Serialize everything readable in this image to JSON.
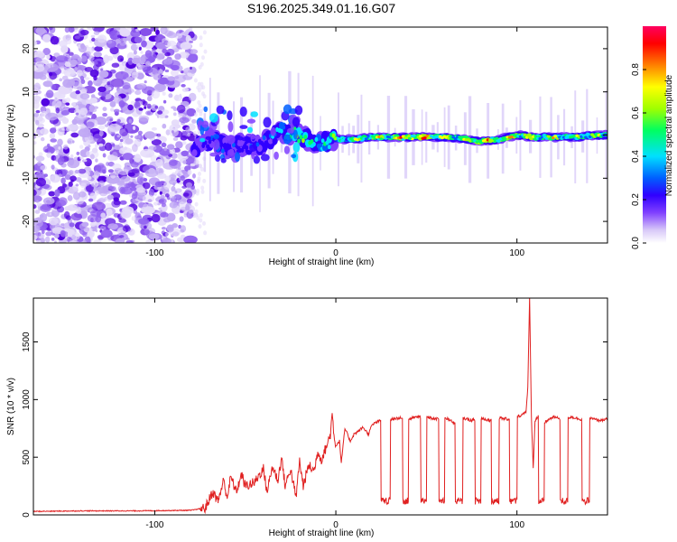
{
  "title": "S196.2025.349.01.16.G07",
  "chart_data": [
    {
      "type": "heatmap",
      "name": "spectrogram",
      "xlabel": "Height of straight line (km)",
      "ylabel": "Frequency (Hz)",
      "xlim": [
        -167,
        150
      ],
      "ylim": [
        -25,
        25
      ],
      "xticks": [
        -100,
        0,
        100
      ],
      "yticks": [
        20,
        10,
        0,
        -10,
        -20
      ],
      "colorbar": {
        "label": "Normalized spectral amplitude",
        "range": [
          0,
          1
        ],
        "ticks": [
          0.0,
          0.2,
          0.4,
          0.6,
          0.8
        ],
        "colors": [
          "#ffffff",
          "#d8c8f8",
          "#8040ff",
          "#3000ff",
          "#0060ff",
          "#00e0ff",
          "#00ff60",
          "#a0ff00",
          "#ffff00",
          "#ff8000",
          "#ff0000",
          "#ff0060"
        ]
      },
      "signal_track": {
        "description_x": [
          -78,
          -70,
          -60,
          -50,
          -40,
          -30,
          -20,
          -10,
          0,
          10,
          20,
          30,
          40,
          50,
          60,
          70,
          80,
          90,
          100,
          110,
          120,
          130,
          140,
          150
        ],
        "frequency": [
          -3,
          -1,
          -3,
          -2,
          -2,
          1,
          0,
          -2,
          -1,
          -1,
          -0.5,
          -0.5,
          -0.5,
          -0.5,
          -0.5,
          -0.8,
          -1.5,
          -1,
          0,
          -0.5,
          -0.5,
          -0.5,
          -0.2,
          0
        ],
        "amplitude": [
          0.25,
          0.3,
          0.3,
          0.3,
          0.3,
          0.45,
          0.6,
          0.45,
          0.6,
          0.65,
          0.7,
          0.75,
          0.85,
          0.9,
          0.75,
          0.7,
          0.85,
          0.8,
          0.8,
          0.7,
          0.7,
          0.65,
          0.7,
          0.65
        ]
      },
      "noise_region_x": [
        -167,
        -78
      ]
    },
    {
      "type": "line",
      "name": "snr",
      "xlabel": "Height of straight line (km)",
      "ylabel": "SNR (10 * v/v)",
      "xlim": [
        -167,
        150
      ],
      "ylim": [
        0,
        1880
      ],
      "xticks": [
        -100,
        0,
        100
      ],
      "yticks": [
        0,
        500,
        1000,
        1500
      ],
      "color": "#e02020",
      "series": {
        "x": [
          -167,
          -140,
          -110,
          -80,
          -72,
          -68,
          -65,
          -62,
          -60,
          -58,
          -55,
          -52,
          -50,
          -45,
          -40,
          -38,
          -35,
          -32,
          -30,
          -28,
          -25,
          -22,
          -20,
          -18,
          -15,
          -12,
          -10,
          -8,
          -5,
          -3,
          -2,
          -1,
          0,
          2,
          3,
          5,
          8,
          10,
          12,
          15,
          18,
          20,
          22,
          25,
          30,
          35,
          40,
          45,
          50,
          55,
          60,
          65,
          70,
          75,
          80,
          85,
          90,
          95,
          100,
          103,
          105,
          106,
          107,
          108,
          109,
          110,
          112,
          115,
          120,
          125,
          130,
          135,
          140,
          145,
          150
        ],
        "y": [
          30,
          35,
          35,
          40,
          60,
          200,
          120,
          300,
          150,
          330,
          200,
          350,
          250,
          280,
          400,
          200,
          420,
          300,
          500,
          250,
          400,
          150,
          470,
          250,
          430,
          380,
          550,
          480,
          600,
          700,
          880,
          700,
          600,
          640,
          450,
          750,
          640,
          700,
          720,
          760,
          700,
          780,
          800,
          820,
          830,
          840,
          830,
          850,
          850,
          830,
          850,
          800,
          840,
          820,
          840,
          820,
          840,
          830,
          850,
          870,
          900,
          1100,
          1880,
          850,
          400,
          820,
          860,
          800,
          850,
          830,
          850,
          830,
          840,
          820,
          830
        ]
      },
      "dropouts": [
        [
          25,
          30
        ],
        [
          37,
          40
        ],
        [
          47,
          50
        ],
        [
          57,
          60
        ],
        [
          66,
          70
        ],
        [
          77,
          80
        ],
        [
          86,
          90
        ],
        [
          96,
          100
        ],
        [
          112,
          115
        ],
        [
          124,
          128
        ],
        [
          136,
          140
        ]
      ],
      "dropout_level": 120
    }
  ]
}
